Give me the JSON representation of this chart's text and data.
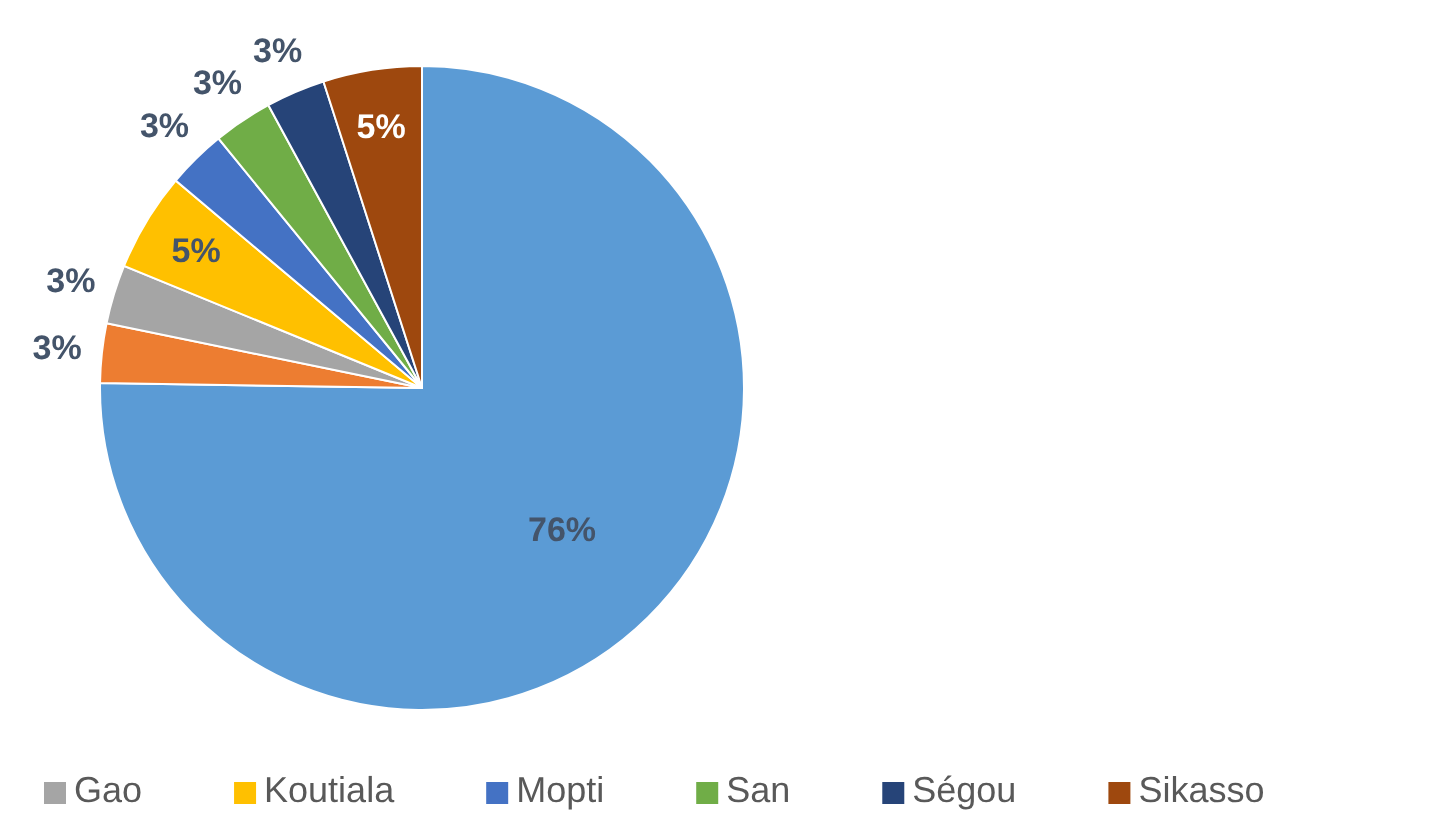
{
  "chart_data": {
    "type": "pie",
    "categories": [
      null,
      null,
      "Gao",
      "Koutiala",
      "Mopti",
      "San",
      "Ségou",
      "Sikasso"
    ],
    "values": [
      76,
      3,
      3,
      5,
      3,
      3,
      3,
      5
    ],
    "colors": [
      "#5b9bd5",
      "#ed7d31",
      "#a5a5a5",
      "#ffc000",
      "#4472c4",
      "#70ad47",
      "#264478",
      "#9e480e"
    ],
    "value_labels": [
      "76%",
      "3%",
      "3%",
      "5%",
      "3%",
      "3%",
      "3%",
      "5%"
    ],
    "legend": "bottom"
  }
}
